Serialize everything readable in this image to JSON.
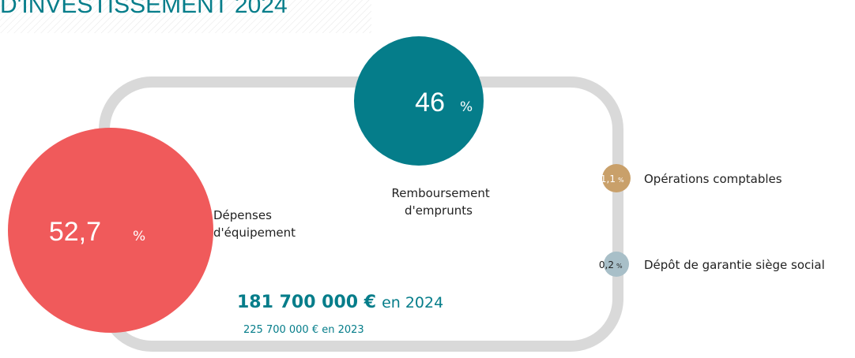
{
  "title": "D'INVESTISSEMENT 2024",
  "items": [
    {
      "value": "52,7",
      "unit": "%",
      "label": [
        "Dépenses",
        "d'équipement"
      ]
    },
    {
      "value": "46",
      "unit": "%",
      "label": [
        "Remboursement",
        "d'emprunts"
      ]
    },
    {
      "value": "1,1",
      "unit": "%",
      "label": [
        "Opérations comptables"
      ]
    },
    {
      "value": "0,2",
      "unit": "%",
      "label": [
        "Dépôt de garantie siège social"
      ]
    }
  ],
  "total": {
    "amount": "181 700 000 €",
    "suffix": "en 2024"
  },
  "previous": "225 700 000 € en 2023"
}
